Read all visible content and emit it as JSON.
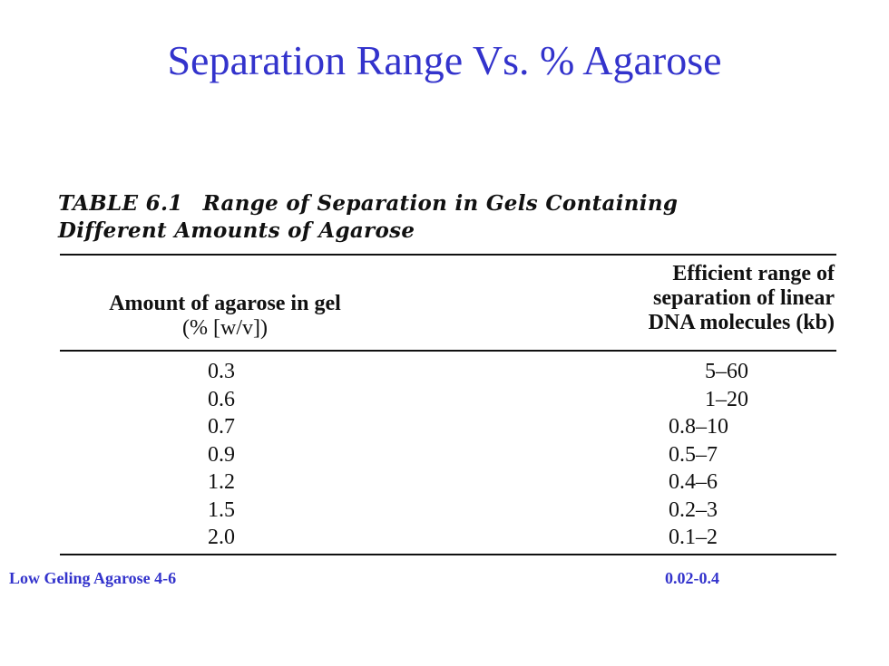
{
  "slide": {
    "title": "Separation Range Vs. % Agarose"
  },
  "table": {
    "caption_number": "TABLE 6.1",
    "caption_line1": "Range of Separation in Gels Containing",
    "caption_line2": "Different Amounts of Agarose",
    "header_left_line1": "Amount of agarose in gel",
    "header_left_line2": "(% [w/v])",
    "header_right_line1": "Efficient range of",
    "header_right_line2": "separation of linear",
    "header_right_line3": "DNA molecules (kb)",
    "rows": [
      {
        "agarose": "0.3",
        "range": "5–60"
      },
      {
        "agarose": "0.6",
        "range": "1–20"
      },
      {
        "agarose": "0.7",
        "range": "0.8–10"
      },
      {
        "agarose": "0.9",
        "range": "0.5–7"
      },
      {
        "agarose": "1.2",
        "range": "0.4–6"
      },
      {
        "agarose": "1.5",
        "range": "0.2–3"
      },
      {
        "agarose": "2.0",
        "range": "0.1–2"
      }
    ]
  },
  "footnote": {
    "label": "Low Geling Agarose  4-6",
    "value": "0.02-0.4"
  },
  "colors": {
    "title": "#3333cc",
    "text": "#111111",
    "footnote": "#3333cc"
  }
}
